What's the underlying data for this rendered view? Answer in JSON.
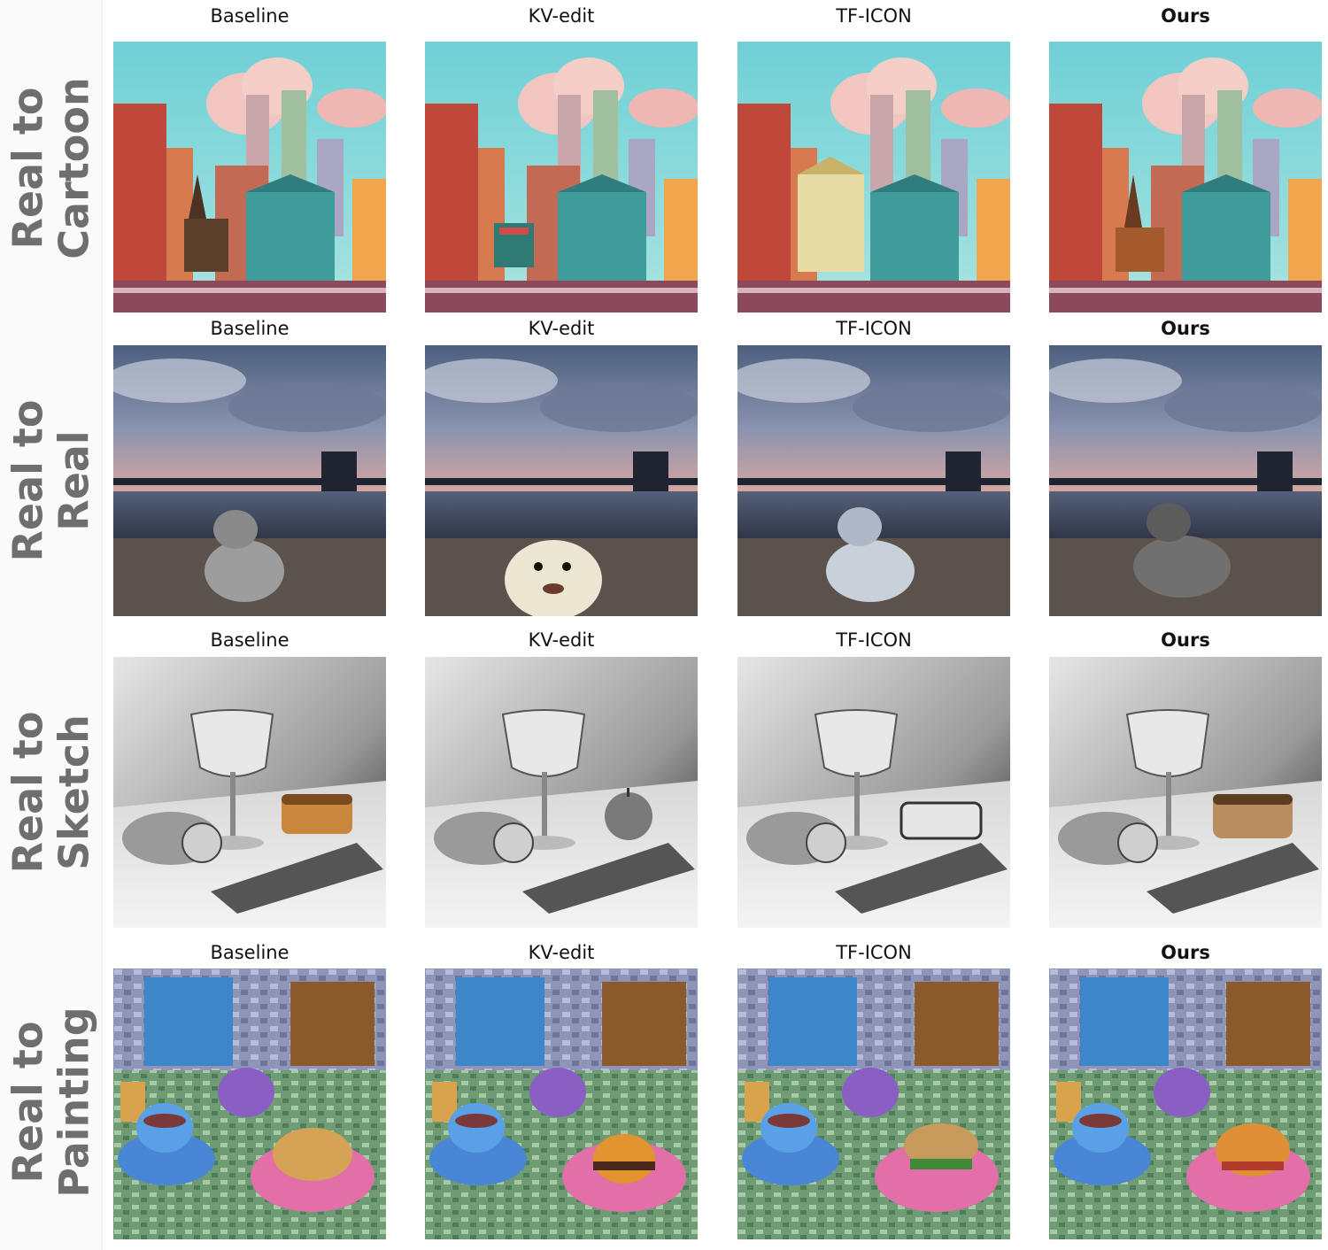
{
  "columns": [
    "Baseline",
    "KV-edit",
    "TF-ICON",
    "Ours"
  ],
  "rows": [
    {
      "label_line1": "Real to",
      "label_line2": "Cartoon"
    },
    {
      "label_line1": "Real to",
      "label_line2": "Real"
    },
    {
      "label_line1": "Real to",
      "label_line2": "Sketch"
    },
    {
      "label_line1": "Real to",
      "label_line2": "Painting"
    }
  ]
}
